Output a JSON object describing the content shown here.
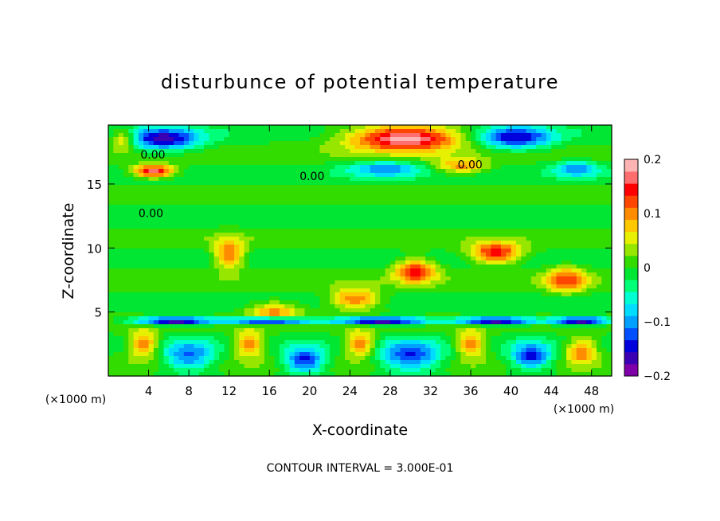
{
  "chart_data": {
    "type": "heatmap",
    "title": "disturbunce of potential temperature",
    "xlabel": "X-coordinate",
    "ylabel": "Z-coordinate",
    "x_unit_left": "(×1000 m)",
    "x_unit_right": "(×1000 m)",
    "footer": "CONTOUR INTERVAL = 3.000E-01",
    "xlim": [
      0,
      50
    ],
    "ylim": [
      0,
      19.6
    ],
    "x_ticks": [
      4,
      8,
      12,
      16,
      20,
      24,
      28,
      32,
      36,
      40,
      44,
      48
    ],
    "x_tick_labels": [
      "4",
      "8",
      "12",
      "16",
      "20",
      "24",
      "28",
      "32",
      "36",
      "40",
      "44",
      "48"
    ],
    "y_ticks": [
      5,
      10,
      15
    ],
    "y_tick_labels": [
      "5",
      "10",
      "15"
    ],
    "colorbar": {
      "range": [
        -0.2,
        0.2
      ],
      "ticks": [
        -0.2,
        -0.1,
        0,
        0.1,
        0.2
      ],
      "tick_labels": [
        "−0.2",
        "−0.1",
        "0",
        "0.1",
        "0.2"
      ],
      "colors": [
        "#7f00a8",
        "#3c00b4",
        "#0000dc",
        "#0050ff",
        "#00a0ff",
        "#00dcff",
        "#00ffd2",
        "#00ff78",
        "#00e632",
        "#32dc00",
        "#96e600",
        "#e6f000",
        "#ffc800",
        "#ff8c00",
        "#ff4600",
        "#ff0000",
        "#ff6e6e",
        "#ffb4b4"
      ]
    },
    "contour_labels": [
      {
        "text": "0.00",
        "x": 3.2,
        "z": 17.0
      },
      {
        "text": "0.00",
        "x": 19.0,
        "z": 15.3
      },
      {
        "text": "0.00",
        "x": 34.7,
        "z": 16.2
      },
      {
        "text": "0.00",
        "x": 3.0,
        "z": 12.4
      }
    ],
    "features": [
      {
        "x": 5.5,
        "z": 18.5,
        "v": -0.16,
        "sx": 3.6,
        "sz": 0.9
      },
      {
        "x": 29.5,
        "z": 18.6,
        "v": 0.2,
        "sx": 5.5,
        "sz": 1.0
      },
      {
        "x": 40.5,
        "z": 18.6,
        "v": -0.15,
        "sx": 3.6,
        "sz": 0.9
      },
      {
        "x": 4.5,
        "z": 16.0,
        "v": 0.18,
        "sx": 2.0,
        "sz": 0.5
      },
      {
        "x": 27.5,
        "z": 16.2,
        "v": -0.1,
        "sx": 3.6,
        "sz": 0.6
      },
      {
        "x": 35.0,
        "z": 16.4,
        "v": 0.1,
        "sx": 2.5,
        "sz": 0.6
      },
      {
        "x": 46.5,
        "z": 16.2,
        "v": -0.1,
        "sx": 2.2,
        "sz": 0.6
      },
      {
        "x": 1.5,
        "z": 18.5,
        "v": 0.1,
        "sx": 1.2,
        "sz": 0.8
      },
      {
        "x": 12.0,
        "z": 9.5,
        "v": 0.12,
        "sx": 1.5,
        "sz": 1.2
      },
      {
        "x": 38.5,
        "z": 9.6,
        "v": 0.16,
        "sx": 2.5,
        "sz": 0.8
      },
      {
        "x": 30.5,
        "z": 8.2,
        "v": 0.15,
        "sx": 2.0,
        "sz": 0.9
      },
      {
        "x": 24.5,
        "z": 6.0,
        "v": 0.12,
        "sx": 2.5,
        "sz": 0.8
      },
      {
        "x": 16.5,
        "z": 5.0,
        "v": 0.1,
        "sx": 2.5,
        "sz": 0.8
      },
      {
        "x": 45.5,
        "z": 7.5,
        "v": 0.12,
        "sx": 2.0,
        "sz": 1.0
      },
      {
        "x": 6.5,
        "z": 4.3,
        "v": -0.2,
        "sx": 4.0,
        "sz": 0.3
      },
      {
        "x": 16.0,
        "z": 4.3,
        "v": -0.2,
        "sx": 4.0,
        "sz": 0.3
      },
      {
        "x": 27.0,
        "z": 4.3,
        "v": -0.2,
        "sx": 5.0,
        "sz": 0.3
      },
      {
        "x": 38.5,
        "z": 4.3,
        "v": -0.2,
        "sx": 4.0,
        "sz": 0.3
      },
      {
        "x": 47.0,
        "z": 4.3,
        "v": -0.2,
        "sx": 3.0,
        "sz": 0.3
      },
      {
        "x": 8.0,
        "z": 1.5,
        "v": -0.12,
        "sx": 2.5,
        "sz": 1.2
      },
      {
        "x": 19.5,
        "z": 1.2,
        "v": -0.15,
        "sx": 2.0,
        "sz": 1.0
      },
      {
        "x": 30.0,
        "z": 1.5,
        "v": -0.14,
        "sx": 3.0,
        "sz": 1.2
      },
      {
        "x": 42.0,
        "z": 1.5,
        "v": -0.15,
        "sx": 2.0,
        "sz": 1.0
      },
      {
        "x": 3.5,
        "z": 2.5,
        "v": 0.12,
        "sx": 1.5,
        "sz": 1.0
      },
      {
        "x": 14.0,
        "z": 2.5,
        "v": 0.12,
        "sx": 1.5,
        "sz": 1.0
      },
      {
        "x": 25.0,
        "z": 2.5,
        "v": 0.12,
        "sx": 1.5,
        "sz": 1.0
      },
      {
        "x": 36.0,
        "z": 2.5,
        "v": 0.12,
        "sx": 1.5,
        "sz": 1.0
      },
      {
        "x": 47.0,
        "z": 2.0,
        "v": 0.12,
        "sx": 1.5,
        "sz": 1.0
      }
    ]
  }
}
